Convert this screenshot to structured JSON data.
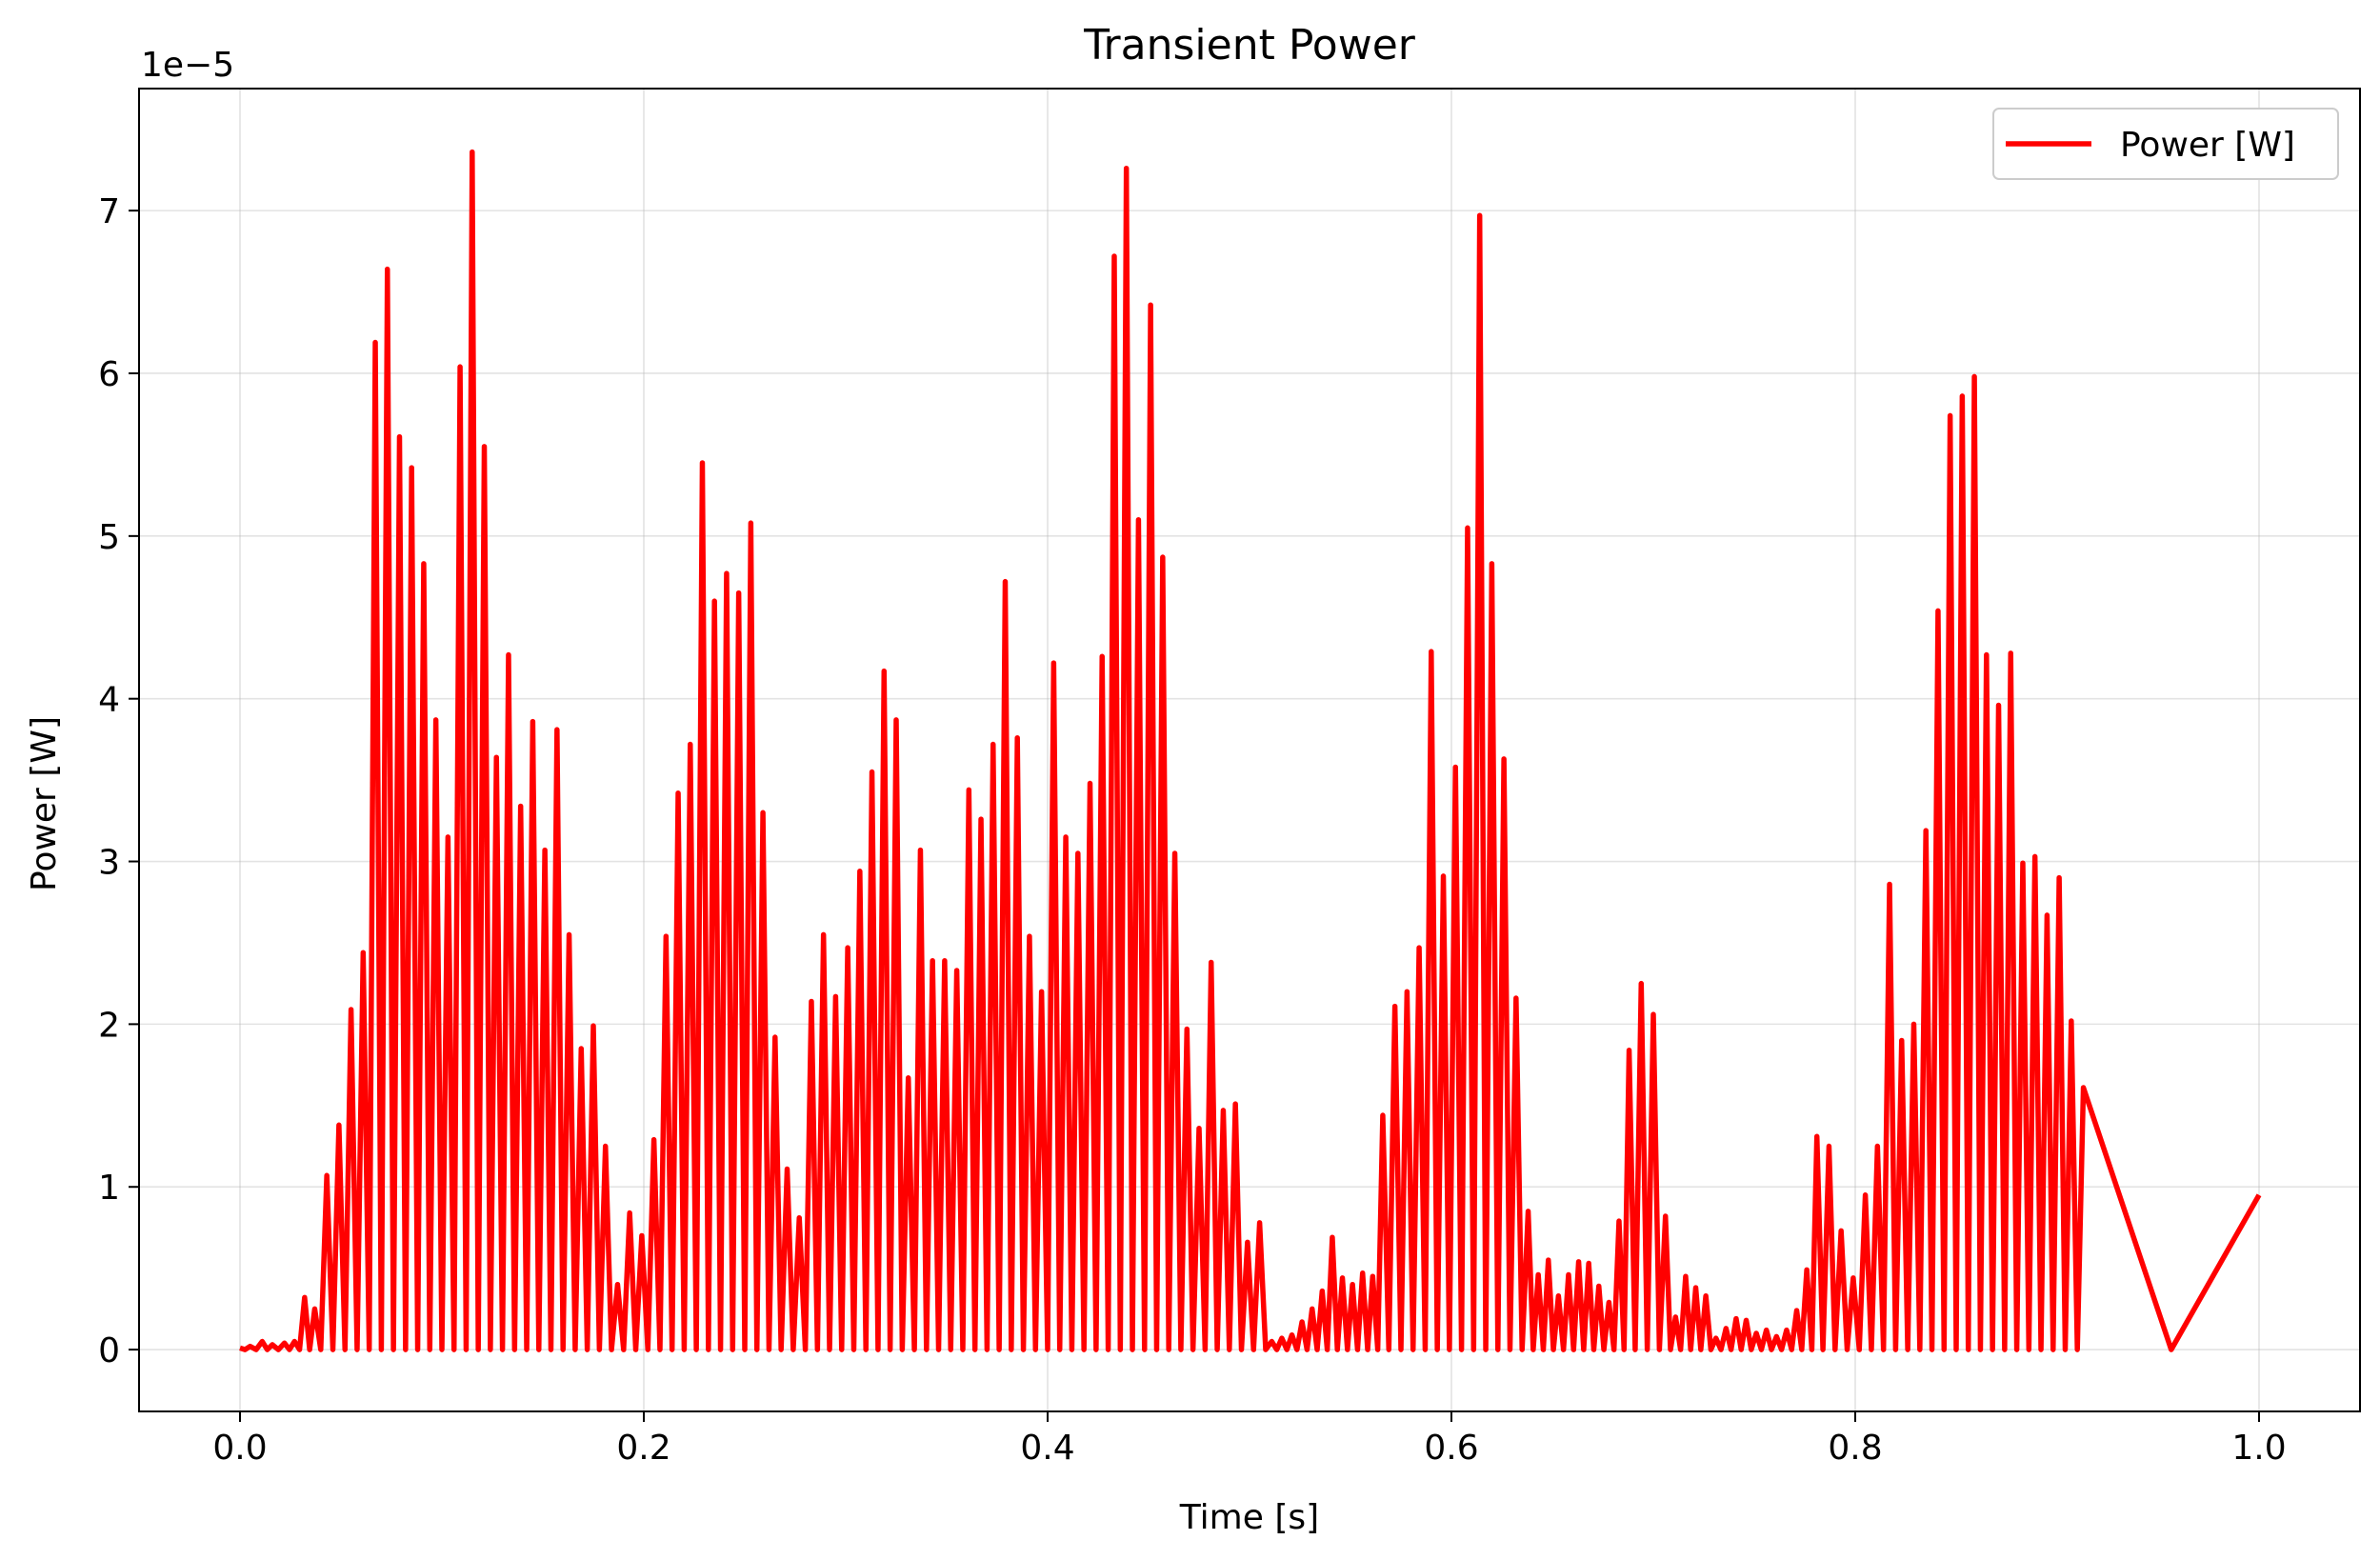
{
  "chart_data": {
    "type": "line",
    "title": "Transient Power",
    "xlabel": "Time [s]",
    "ylabel": "Power [W]",
    "y_offset_label": "1e−5",
    "xlim": [
      -0.05,
      1.05
    ],
    "ylim": [
      -0.38,
      7.75
    ],
    "x_ticks": [
      0.0,
      0.2,
      0.4,
      0.6,
      0.8,
      1.0
    ],
    "x_tick_labels": [
      "0.0",
      "0.2",
      "0.4",
      "0.6",
      "0.8",
      "1.0"
    ],
    "y_ticks": [
      0,
      1,
      2,
      3,
      4,
      5,
      6,
      7
    ],
    "y_tick_labels": [
      "0",
      "1",
      "2",
      "3",
      "4",
      "5",
      "6",
      "7"
    ],
    "grid": true,
    "legend_position": "upper right",
    "color": "#ff0000",
    "series": [
      {
        "name": "Power [W]",
        "color": "#ff0000",
        "peaks": [
          [
            0.0,
            0.01
          ],
          [
            0.005,
            0.02
          ],
          [
            0.011,
            0.05
          ],
          [
            0.016,
            0.03
          ],
          [
            0.022,
            0.04
          ],
          [
            0.027,
            0.05
          ],
          [
            0.032,
            0.32
          ],
          [
            0.037,
            0.25
          ],
          [
            0.043,
            1.07
          ],
          [
            0.049,
            1.38
          ],
          [
            0.055,
            2.09
          ],
          [
            0.061,
            2.44
          ],
          [
            0.067,
            6.19
          ],
          [
            0.073,
            6.64
          ],
          [
            0.079,
            5.61
          ],
          [
            0.085,
            5.42
          ],
          [
            0.091,
            4.83
          ],
          [
            0.097,
            3.87
          ],
          [
            0.103,
            3.15
          ],
          [
            0.109,
            6.04
          ],
          [
            0.115,
            7.36
          ],
          [
            0.121,
            5.55
          ],
          [
            0.127,
            3.64
          ],
          [
            0.133,
            4.27
          ],
          [
            0.139,
            3.34
          ],
          [
            0.145,
            3.86
          ],
          [
            0.151,
            3.07
          ],
          [
            0.157,
            3.81
          ],
          [
            0.163,
            2.55
          ],
          [
            0.169,
            1.85
          ],
          [
            0.175,
            1.99
          ],
          [
            0.181,
            1.25
          ],
          [
            0.187,
            0.4
          ],
          [
            0.193,
            0.84
          ],
          [
            0.199,
            0.7
          ],
          [
            0.205,
            1.29
          ],
          [
            0.211,
            2.54
          ],
          [
            0.217,
            3.42
          ],
          [
            0.223,
            3.72
          ],
          [
            0.229,
            5.45
          ],
          [
            0.235,
            4.6
          ],
          [
            0.241,
            4.77
          ],
          [
            0.247,
            4.65
          ],
          [
            0.253,
            5.08
          ],
          [
            0.259,
            3.3
          ],
          [
            0.265,
            1.92
          ],
          [
            0.271,
            1.11
          ],
          [
            0.277,
            0.81
          ],
          [
            0.283,
            2.14
          ],
          [
            0.289,
            2.55
          ],
          [
            0.295,
            2.17
          ],
          [
            0.301,
            2.47
          ],
          [
            0.307,
            2.94
          ],
          [
            0.313,
            3.55
          ],
          [
            0.319,
            4.17
          ],
          [
            0.325,
            3.87
          ],
          [
            0.331,
            1.67
          ],
          [
            0.337,
            3.07
          ],
          [
            0.343,
            2.39
          ],
          [
            0.349,
            2.39
          ],
          [
            0.355,
            2.33
          ],
          [
            0.361,
            3.44
          ],
          [
            0.367,
            3.26
          ],
          [
            0.373,
            3.72
          ],
          [
            0.379,
            4.72
          ],
          [
            0.385,
            3.76
          ],
          [
            0.391,
            2.54
          ],
          [
            0.397,
            2.2
          ],
          [
            0.403,
            4.22
          ],
          [
            0.409,
            3.15
          ],
          [
            0.415,
            3.05
          ],
          [
            0.421,
            3.48
          ],
          [
            0.427,
            4.26
          ],
          [
            0.433,
            6.72
          ],
          [
            0.439,
            7.26
          ],
          [
            0.445,
            5.1
          ],
          [
            0.451,
            6.42
          ],
          [
            0.457,
            4.87
          ],
          [
            0.463,
            3.05
          ],
          [
            0.469,
            1.97
          ],
          [
            0.475,
            1.36
          ],
          [
            0.481,
            2.38
          ],
          [
            0.487,
            1.47
          ],
          [
            0.493,
            1.51
          ],
          [
            0.499,
            0.66
          ],
          [
            0.505,
            0.78
          ],
          [
            0.511,
            0.05
          ],
          [
            0.516,
            0.07
          ],
          [
            0.521,
            0.09
          ],
          [
            0.526,
            0.17
          ],
          [
            0.531,
            0.25
          ],
          [
            0.536,
            0.36
          ],
          [
            0.541,
            0.69
          ],
          [
            0.546,
            0.44
          ],
          [
            0.551,
            0.4
          ],
          [
            0.556,
            0.47
          ],
          [
            0.561,
            0.45
          ],
          [
            0.566,
            1.44
          ],
          [
            0.572,
            2.11
          ],
          [
            0.578,
            2.2
          ],
          [
            0.584,
            2.47
          ],
          [
            0.59,
            4.29
          ],
          [
            0.596,
            2.91
          ],
          [
            0.602,
            3.58
          ],
          [
            0.608,
            5.05
          ],
          [
            0.614,
            6.97
          ],
          [
            0.62,
            4.83
          ],
          [
            0.626,
            3.63
          ],
          [
            0.632,
            2.16
          ],
          [
            0.638,
            0.85
          ],
          [
            0.643,
            0.46
          ],
          [
            0.648,
            0.55
          ],
          [
            0.653,
            0.33
          ],
          [
            0.658,
            0.46
          ],
          [
            0.663,
            0.54
          ],
          [
            0.668,
            0.53
          ],
          [
            0.673,
            0.39
          ],
          [
            0.678,
            0.29
          ],
          [
            0.683,
            0.79
          ],
          [
            0.688,
            1.84
          ],
          [
            0.694,
            2.25
          ],
          [
            0.7,
            2.06
          ],
          [
            0.706,
            0.82
          ],
          [
            0.711,
            0.2
          ],
          [
            0.716,
            0.45
          ],
          [
            0.721,
            0.38
          ],
          [
            0.726,
            0.33
          ],
          [
            0.731,
            0.07
          ],
          [
            0.736,
            0.13
          ],
          [
            0.741,
            0.19
          ],
          [
            0.746,
            0.18
          ],
          [
            0.751,
            0.1
          ],
          [
            0.756,
            0.12
          ],
          [
            0.761,
            0.08
          ],
          [
            0.766,
            0.12
          ],
          [
            0.771,
            0.24
          ],
          [
            0.776,
            0.49
          ],
          [
            0.781,
            1.31
          ],
          [
            0.787,
            1.25
          ],
          [
            0.793,
            0.73
          ],
          [
            0.799,
            0.44
          ],
          [
            0.805,
            0.95
          ],
          [
            0.811,
            1.25
          ],
          [
            0.817,
            2.86
          ],
          [
            0.823,
            1.9
          ],
          [
            0.829,
            2.0
          ],
          [
            0.835,
            3.19
          ],
          [
            0.841,
            4.54
          ],
          [
            0.847,
            5.74
          ],
          [
            0.853,
            5.86
          ],
          [
            0.859,
            5.98
          ],
          [
            0.865,
            4.27
          ],
          [
            0.871,
            3.96
          ],
          [
            0.877,
            4.28
          ],
          [
            0.883,
            2.99
          ],
          [
            0.889,
            3.03
          ],
          [
            0.895,
            2.67
          ],
          [
            0.901,
            2.9
          ],
          [
            0.907,
            2.02
          ],
          [
            0.913,
            1.61
          ]
        ],
        "end_point": [
          1.0,
          0.95
        ]
      }
    ]
  }
}
